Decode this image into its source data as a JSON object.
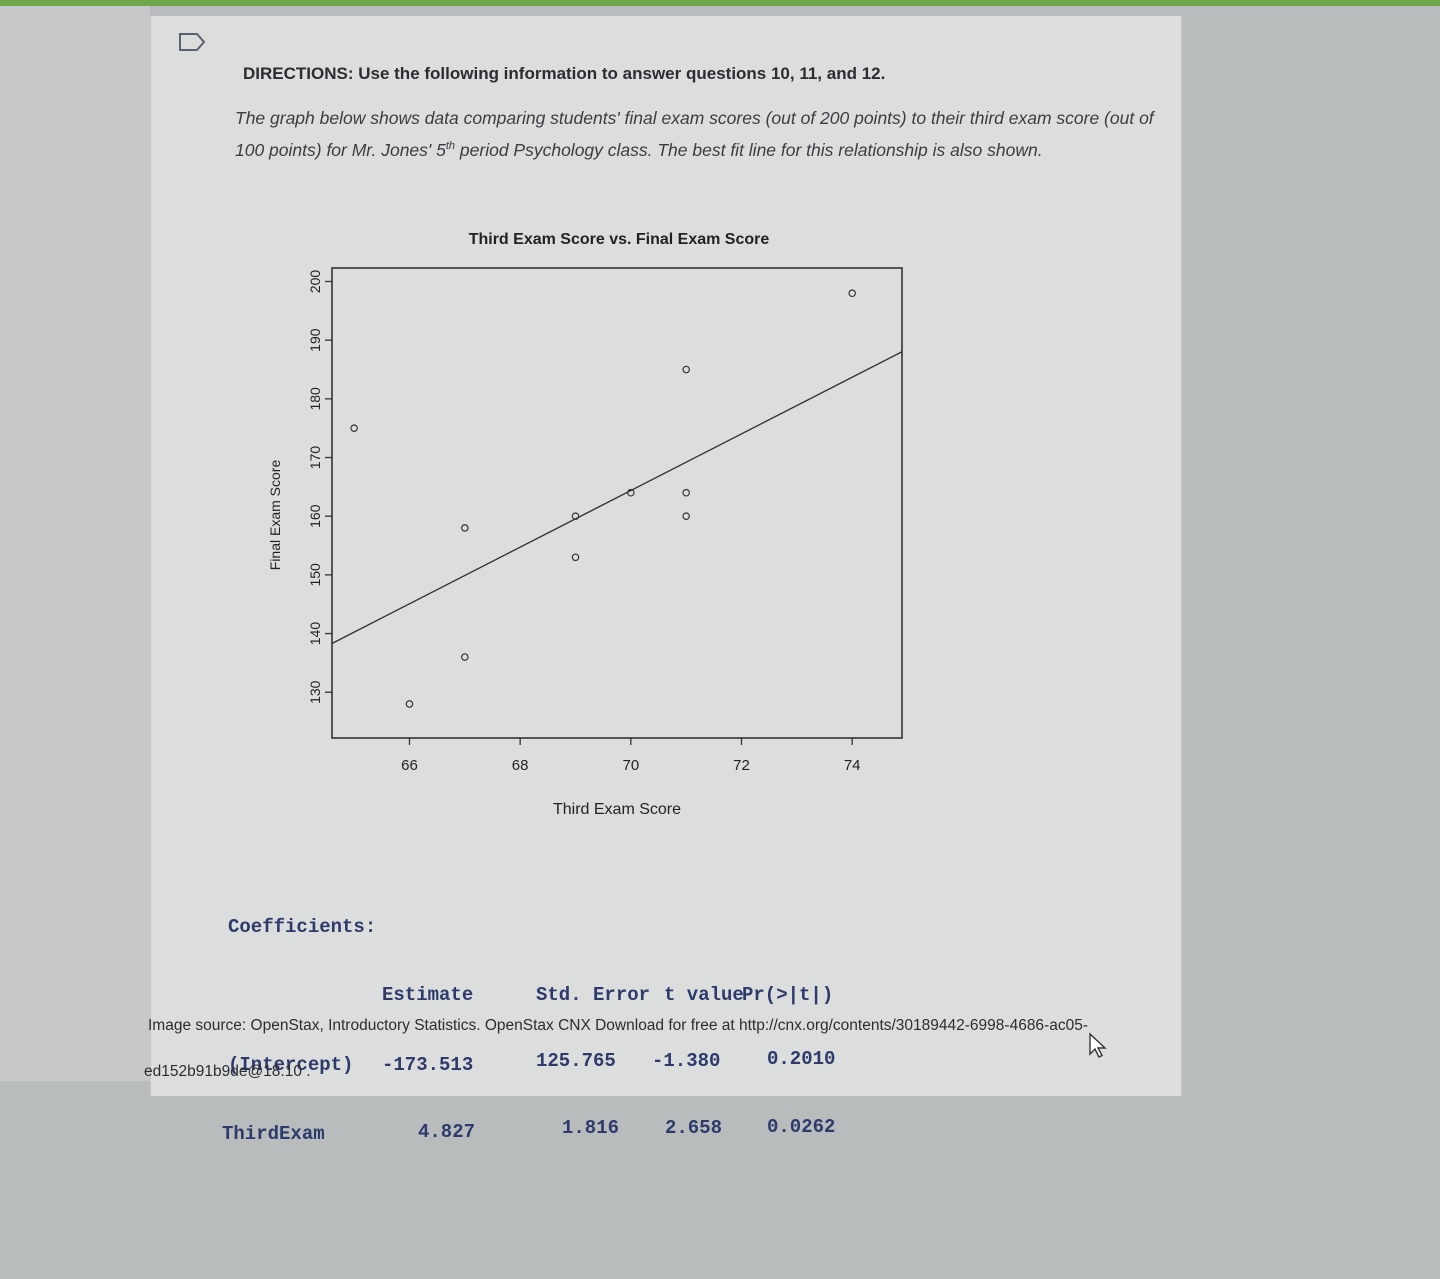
{
  "directions": {
    "label": "DIRECTIONS:",
    "text": "Use the following information to answer questions 10, 11, and 12."
  },
  "intro": {
    "part1": "The graph below shows data comparing students' final exam scores (out of 200 points) to their third exam score (out of 100 points) for Mr. Jones' 5",
    "sup": "th",
    "part2": " period Psychology class. The best fit line for this relationship is also shown."
  },
  "chart_data": {
    "type": "scatter",
    "title": "Third Exam Score vs. Final Exam Score",
    "xlabel": "Third Exam Score",
    "ylabel": "Final Exam Score",
    "xlim": [
      64.6,
      74.9
    ],
    "ylim": [
      122.2,
      202.3
    ],
    "xticks": [
      66,
      68,
      70,
      72,
      74
    ],
    "yticks": [
      130,
      140,
      150,
      160,
      170,
      180,
      190,
      200
    ],
    "points": [
      {
        "x": 65,
        "y": 175
      },
      {
        "x": 66,
        "y": 128
      },
      {
        "x": 67,
        "y": 136
      },
      {
        "x": 67,
        "y": 158
      },
      {
        "x": 69,
        "y": 153
      },
      {
        "x": 69,
        "y": 160
      },
      {
        "x": 70,
        "y": 164
      },
      {
        "x": 71,
        "y": 160
      },
      {
        "x": 71,
        "y": 164
      },
      {
        "x": 71,
        "y": 185
      },
      {
        "x": 74,
        "y": 198
      }
    ],
    "fit_line": {
      "intercept": -173.513,
      "slope": 4.827
    },
    "grid": false,
    "legend": "none"
  },
  "coefficients": {
    "heading": "Coefficients:",
    "columns": [
      "Estimate",
      "Std. Error",
      "t value",
      "Pr(>|t|)"
    ],
    "rows": [
      {
        "name": "(Intercept)",
        "values": [
          "-173.513",
          "125.765",
          "-1.380",
          "0.2010"
        ]
      },
      {
        "name": "ThirdExam",
        "values": [
          "4.827",
          "1.816",
          "2.658",
          "0.0262"
        ]
      }
    ]
  },
  "source": {
    "line1": "Image source: OpenStax, Introductory Statistics. OpenStax CNX Download for free at http://cnx.org/contents/30189442-6998-4686-ac05-",
    "line2": "ed152b91b9de@18.10 ."
  },
  "icons": {
    "bookmark": "bookmark-icon",
    "cursor": "mouse-pointer-icon"
  }
}
